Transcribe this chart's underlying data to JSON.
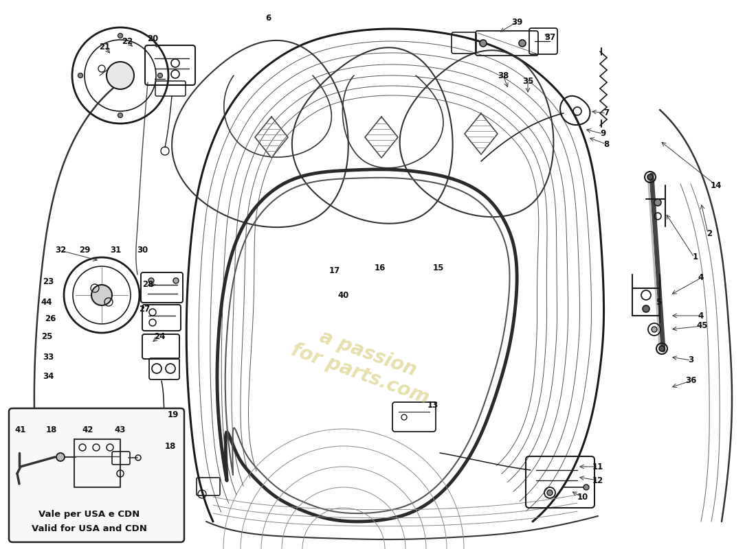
{
  "bg": "#ffffff",
  "lc": "#1a1a1a",
  "watermark": "a passion® for parts.com",
  "wm_color": "#c8b84a",
  "wm_alpha": 0.45,
  "inset_label_it": "Vale per USA e CDN",
  "inset_label_en": "Valid for USA and CDN",
  "label_fontsize": 8.5
}
